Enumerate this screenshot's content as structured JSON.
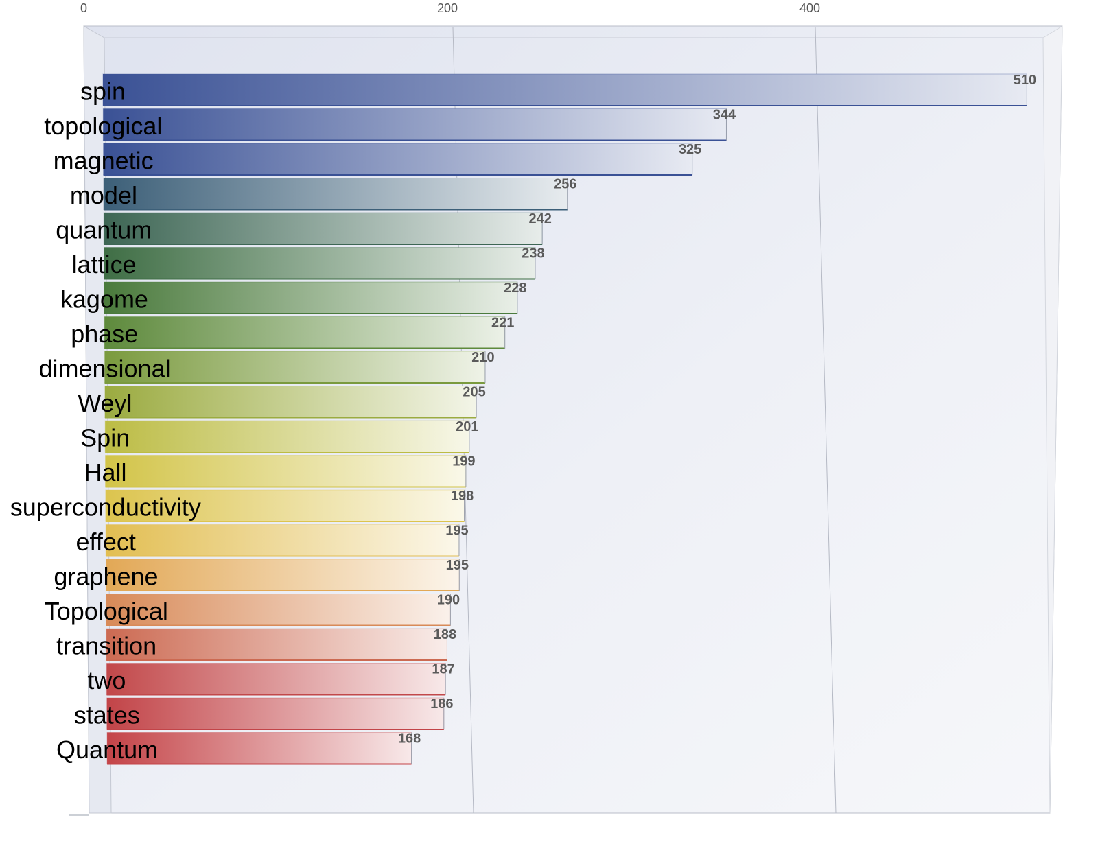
{
  "chart_data": {
    "type": "bar",
    "orientation": "horizontal",
    "style": "3d",
    "title": "",
    "xlabel": "",
    "ylabel": "",
    "xlim": [
      0,
      520
    ],
    "x_ticks": [
      0,
      200,
      400
    ],
    "x_tick_labels": [
      "0",
      "200",
      "400"
    ],
    "x_ticks_position": "top",
    "grid": true,
    "legend": "none",
    "categories": [
      "spin",
      "topological",
      "magnetic",
      "model",
      "quantum",
      "lattice",
      "kagome",
      "phase",
      "dimensional",
      "Weyl",
      "Spin",
      "Hall",
      "superconductivity",
      "effect",
      "graphene",
      "Topological",
      "transition",
      "two",
      "states",
      "Quantum"
    ],
    "values": [
      510,
      344,
      325,
      256,
      242,
      238,
      228,
      221,
      210,
      205,
      201,
      199,
      198,
      195,
      195,
      190,
      188,
      187,
      186,
      168
    ],
    "value_labels": [
      "510",
      "344",
      "325",
      "256",
      "242",
      "238",
      "228",
      "221",
      "210",
      "205",
      "201",
      "199",
      "198",
      "195",
      "195",
      "190",
      "188",
      "187",
      "186",
      "168"
    ],
    "colors": [
      "#3a5195",
      "#3a5195",
      "#3a5195",
      "#3c5f78",
      "#3d6654",
      "#3f6e45",
      "#4a7a3c",
      "#5e8a3c",
      "#7a9a3e",
      "#9bab40",
      "#bcbc44",
      "#d2c448",
      "#dcc44e",
      "#e2be52",
      "#e2a856",
      "#d88a58",
      "#cc6a52",
      "#c2484a",
      "#c24448",
      "#c44448"
    ]
  }
}
